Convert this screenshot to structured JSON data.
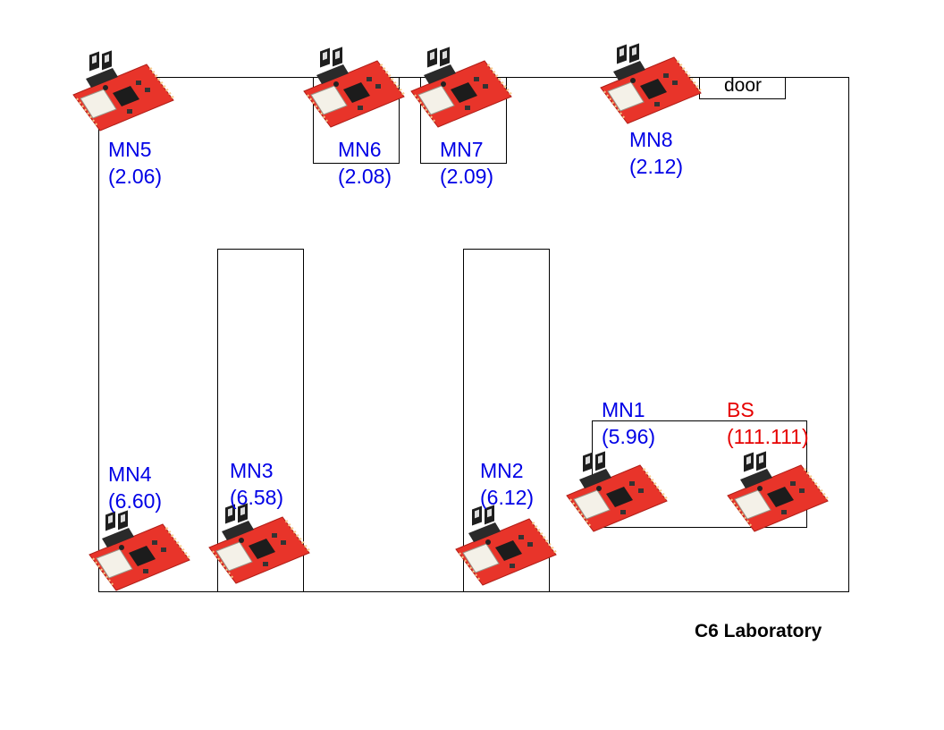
{
  "title": "C6 Laboratory",
  "door_label": "door",
  "nodes": [
    {
      "id": "MN5",
      "value": "(2.06)"
    },
    {
      "id": "MN6",
      "value": "(2.08)"
    },
    {
      "id": "MN7",
      "value": "(2.09)"
    },
    {
      "id": "MN8",
      "value": "(2.12)"
    },
    {
      "id": "MN4",
      "value": "(6.60)"
    },
    {
      "id": "MN3",
      "value": "(6.58)"
    },
    {
      "id": "MN2",
      "value": "(6.12)"
    },
    {
      "id": "MN1",
      "value": "(5.96)"
    },
    {
      "id": "BS",
      "value": "(111.111)"
    }
  ],
  "colors": {
    "mobile_node_text": "#0000e6",
    "base_station_text": "#e60000",
    "board": "#e8342a",
    "walls": "#000000"
  },
  "icons": {
    "sensor_board": "sensor-board-icon"
  }
}
